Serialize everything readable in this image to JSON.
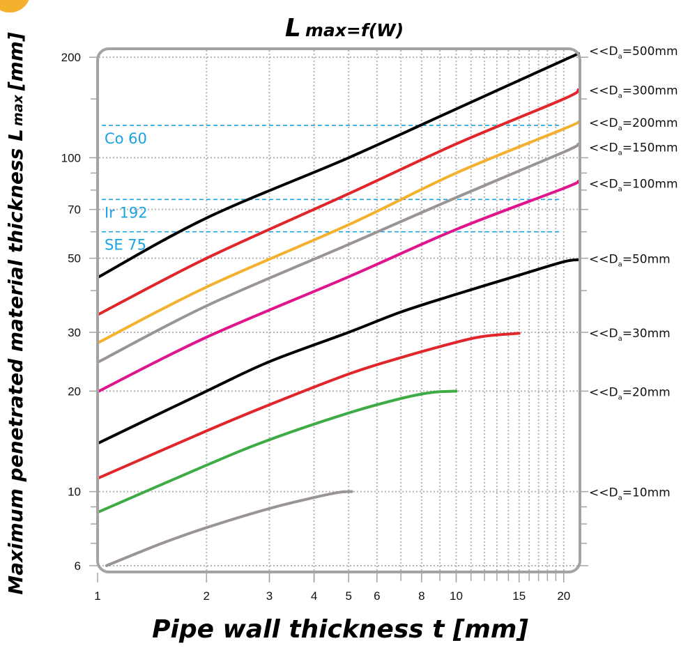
{
  "chart_data": {
    "type": "line",
    "title": "max=f(W)",
    "title_prefix": "L",
    "xlabel": "Pipe wall thickness t [mm]",
    "ylabel_prefix": "Maximum penetrated material thickness L",
    "ylabel_sub": "max",
    "ylabel_suffix": "[mm]",
    "x_scale": "log",
    "y_scale": "log",
    "xlim": [
      1,
      22
    ],
    "ylim": [
      5.8,
      210
    ],
    "x_ticks": [
      1,
      2,
      3,
      4,
      5,
      6,
      8,
      10,
      15,
      20
    ],
    "y_ticks": [
      6,
      10,
      20,
      30,
      50,
      70,
      100,
      200
    ],
    "grid": true,
    "reference_lines": [
      {
        "name": "Co 60",
        "y": 125,
        "color": "#1aa3e0"
      },
      {
        "name": "Ir 192",
        "y": 75,
        "color": "#1aa3e0"
      },
      {
        "name": "SE 75",
        "y": 60,
        "color": "#1aa3e0"
      }
    ],
    "series": [
      {
        "name": "<<Da=500mm",
        "label_prefix": "<<D",
        "label_sub": "a",
        "label_suffix": "=500mm",
        "label_y": 210,
        "color": "#000000",
        "points": [
          [
            1,
            44
          ],
          [
            2,
            66
          ],
          [
            5,
            100
          ],
          [
            10,
            140
          ],
          [
            20,
            196
          ],
          [
            22,
            205
          ]
        ]
      },
      {
        "name": "<<Da=300mm",
        "label_prefix": "<<D",
        "label_sub": "a",
        "label_suffix": "=300mm",
        "label_y": 160,
        "color": "#e0262a",
        "points": [
          [
            1,
            34
          ],
          [
            2,
            50
          ],
          [
            5,
            78
          ],
          [
            10,
            110
          ],
          [
            20,
            150
          ],
          [
            22,
            160
          ]
        ]
      },
      {
        "name": "<<Da=200mm",
        "label_prefix": "<<D",
        "label_sub": "a",
        "label_suffix": "=200mm",
        "label_y": 128,
        "color": "#f4b12e",
        "points": [
          [
            1,
            28
          ],
          [
            2,
            41
          ],
          [
            5,
            63
          ],
          [
            10,
            90
          ],
          [
            20,
            122
          ],
          [
            22,
            128
          ]
        ]
      },
      {
        "name": "<<Da=150mm",
        "label_prefix": "<<D",
        "label_sub": "a",
        "label_suffix": "=150mm",
        "label_y": 108,
        "color": "#9a9494",
        "points": [
          [
            1,
            24.5
          ],
          [
            2,
            36
          ],
          [
            5,
            55
          ],
          [
            10,
            76
          ],
          [
            20,
            104
          ],
          [
            22,
            110
          ]
        ]
      },
      {
        "name": "<<Da=100mm",
        "label_prefix": "<<D",
        "label_sub": "a",
        "label_suffix": "=100mm",
        "label_y": 84,
        "color": "#e0158c",
        "points": [
          [
            1,
            20
          ],
          [
            2,
            29
          ],
          [
            5,
            44
          ],
          [
            10,
            61
          ],
          [
            20,
            81
          ],
          [
            22,
            85
          ]
        ]
      },
      {
        "name": "<<Da=50mm",
        "label_prefix": "<<D",
        "label_sub": "a",
        "label_suffix": "=50mm",
        "label_y": 50,
        "color": "#000000",
        "points": [
          [
            1,
            14
          ],
          [
            2,
            20
          ],
          [
            3,
            24.5
          ],
          [
            5,
            30
          ],
          [
            7,
            34.5
          ],
          [
            10,
            39
          ],
          [
            15,
            44.5
          ],
          [
            20,
            48.8
          ],
          [
            22,
            49.5
          ]
        ]
      },
      {
        "name": "<<Da=30mm",
        "label_prefix": "<<D",
        "label_sub": "a",
        "label_suffix": "=30mm",
        "label_y": 30,
        "color": "#e0262a",
        "points": [
          [
            1,
            11
          ],
          [
            2,
            15.2
          ],
          [
            3,
            18.2
          ],
          [
            5,
            22.5
          ],
          [
            7,
            25.2
          ],
          [
            10,
            28
          ],
          [
            12,
            29.2
          ],
          [
            15,
            29.8
          ]
        ]
      },
      {
        "name": "<<Da=20mm",
        "label_prefix": "<<D",
        "label_sub": "a",
        "label_suffix": "=20mm",
        "label_y": 20,
        "color": "#3fab45",
        "points": [
          [
            1,
            8.7
          ],
          [
            2,
            12
          ],
          [
            3,
            14.3
          ],
          [
            5,
            17.2
          ],
          [
            7,
            19
          ],
          [
            8.5,
            19.8
          ],
          [
            10,
            20
          ]
        ]
      },
      {
        "name": "<<Da=10mm",
        "label_prefix": "<<D",
        "label_sub": "a",
        "label_suffix": "=10mm",
        "label_y": 10,
        "color": "#9a9494",
        "points": [
          [
            1.05,
            6
          ],
          [
            1.5,
            7
          ],
          [
            2,
            7.8
          ],
          [
            3,
            8.9
          ],
          [
            4,
            9.6
          ],
          [
            4.7,
            9.95
          ],
          [
            5.1,
            10
          ]
        ]
      }
    ]
  }
}
